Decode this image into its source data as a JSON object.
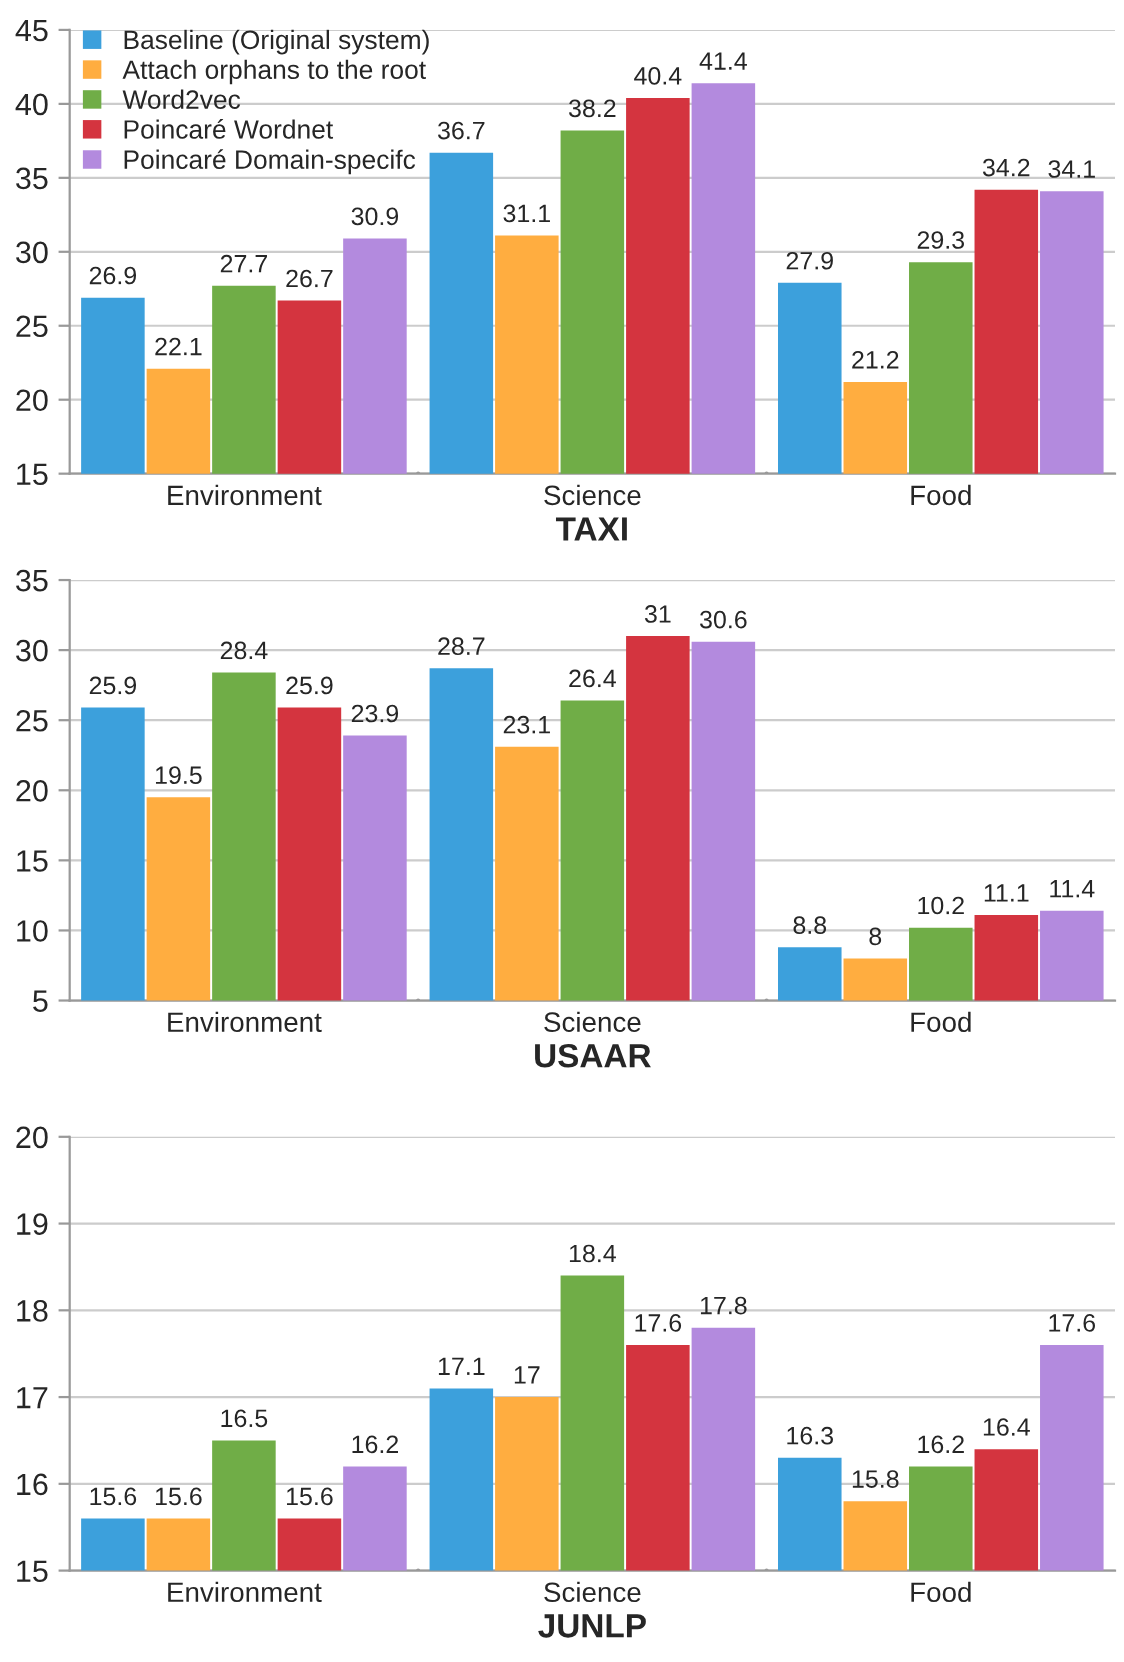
{
  "chart_data": [
    {
      "type": "bar",
      "xlabel": "TAXI",
      "categories": [
        "Environment",
        "Science",
        "Food"
      ],
      "ylim": [
        15,
        45
      ],
      "yticks": [
        15,
        20,
        25,
        30,
        35,
        40,
        45
      ],
      "grid": "y",
      "legend": "top left",
      "data_labels": true,
      "series": [
        {
          "name": "Baseline (Original system)",
          "color": "#3ca0dc",
          "values": [
            26.9,
            36.7,
            27.9
          ]
        },
        {
          "name": "Attach orphans to the root",
          "color": "#ffad40",
          "values": [
            22.1,
            31.1,
            21.2
          ]
        },
        {
          "name": "Word2vec",
          "color": "#70ad47",
          "values": [
            27.7,
            38.2,
            29.3
          ]
        },
        {
          "name": "Poincaré Wordnet",
          "color": "#d4343f",
          "values": [
            26.7,
            40.4,
            34.2
          ]
        },
        {
          "name": "Poincaré Domain-specifc",
          "color": "#b38ade",
          "values": [
            30.9,
            41.4,
            34.1
          ]
        }
      ]
    },
    {
      "type": "bar",
      "xlabel": "USAAR",
      "categories": [
        "Environment",
        "Science",
        "Food"
      ],
      "ylim": [
        5,
        35
      ],
      "yticks": [
        5,
        10,
        15,
        20,
        25,
        30,
        35
      ],
      "grid": "y",
      "data_labels": true,
      "series": [
        {
          "color": "#3ca0dc",
          "values": [
            25.9,
            28.7,
            8.8
          ]
        },
        {
          "color": "#ffad40",
          "values": [
            19.5,
            23.1,
            8
          ]
        },
        {
          "color": "#70ad47",
          "values": [
            28.4,
            26.4,
            10.2
          ]
        },
        {
          "color": "#d4343f",
          "values": [
            25.9,
            31,
            11.1
          ]
        },
        {
          "color": "#b38ade",
          "values": [
            23.9,
            30.6,
            11.4
          ]
        }
      ]
    },
    {
      "type": "bar",
      "xlabel": "JUNLP",
      "categories": [
        "Environment",
        "Science",
        "Food"
      ],
      "ylim": [
        15,
        20
      ],
      "yticks": [
        15,
        16,
        17,
        18,
        19,
        20
      ],
      "grid": "y",
      "data_labels": true,
      "series": [
        {
          "color": "#3ca0dc",
          "values": [
            15.6,
            17.1,
            16.3
          ]
        },
        {
          "color": "#ffad40",
          "values": [
            15.6,
            17,
            15.8
          ]
        },
        {
          "color": "#70ad47",
          "values": [
            16.5,
            18.4,
            16.2
          ]
        },
        {
          "color": "#d4343f",
          "values": [
            15.6,
            17.6,
            16.4
          ]
        },
        {
          "color": "#b38ade",
          "values": [
            16.2,
            17.8,
            17.6
          ]
        }
      ]
    }
  ]
}
